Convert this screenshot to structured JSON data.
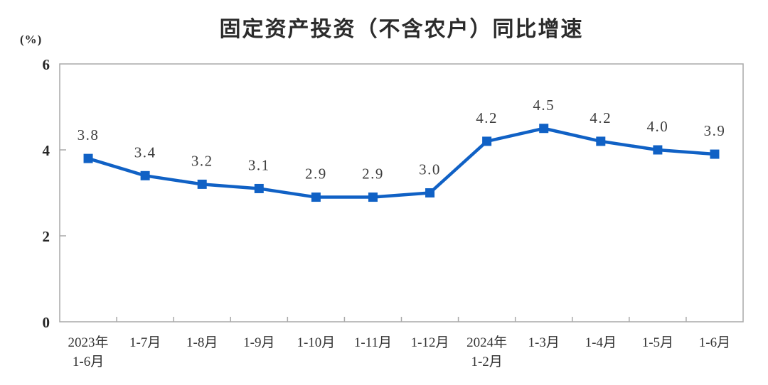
{
  "page": {
    "title": "固定资产投资（不含农户）同比增速"
  },
  "chart_data": {
    "type": "line",
    "title": "固定资产投资（不含农户）同比增速",
    "ylabel": "(%)",
    "xlabel": "",
    "categories": [
      "2023年\n1-6月",
      "1-7月",
      "1-8月",
      "1-9月",
      "1-10月",
      "1-11月",
      "1-12月",
      "2024年\n1-2月",
      "1-3月",
      "1-4月",
      "1-5月",
      "1-6月"
    ],
    "values": [
      3.8,
      3.4,
      3.2,
      3.1,
      2.9,
      2.9,
      3.0,
      4.2,
      4.5,
      4.2,
      4.0,
      3.9
    ],
    "data_labels": [
      "3.8",
      "3.4",
      "3.2",
      "3.1",
      "2.9",
      "2.9",
      "3.0",
      "4.2",
      "4.5",
      "4.2",
      "4.0",
      "3.9"
    ],
    "ylim": [
      0,
      6
    ],
    "yticks": [
      0,
      2,
      4,
      6
    ],
    "grid": false,
    "legend": "none",
    "marker": "square",
    "line_color": "#1061C5",
    "marker_color": "#1061C5",
    "axis_color": "#a9a9a9",
    "label_color": "#3d3d3d",
    "background_color": "#ffffff"
  }
}
